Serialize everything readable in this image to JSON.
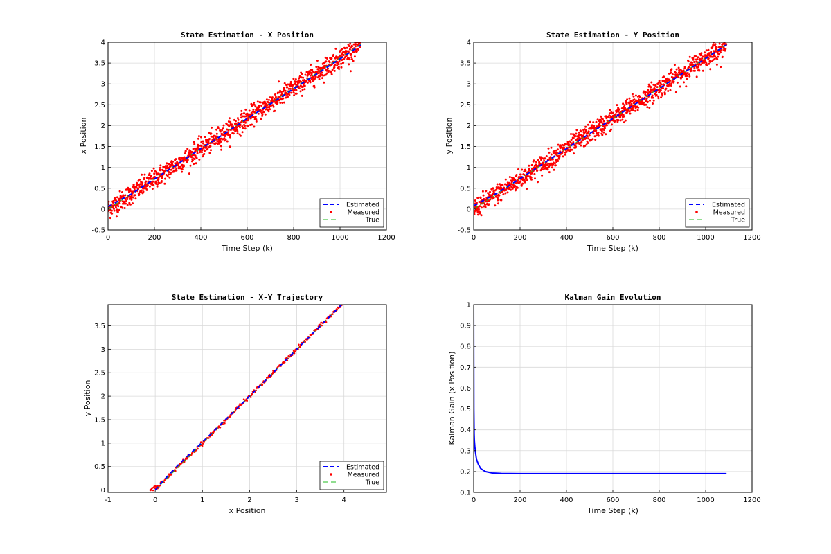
{
  "colors": {
    "estimated": "#0000ff",
    "measured": "#ff0000",
    "true": "#22bb22",
    "grid": "#d9d9d9"
  },
  "chart_data": [
    {
      "id": "x",
      "type": "line",
      "title": "State Estimation - X Position",
      "xlabel": "Time Step (k)",
      "ylabel": "x Position",
      "xlim": [
        0,
        1200
      ],
      "ylim": [
        -0.5,
        4
      ],
      "xticks": [
        0,
        200,
        400,
        600,
        800,
        1000,
        1200
      ],
      "yticks": [
        -0.5,
        0,
        0.5,
        1,
        1.5,
        2,
        2.5,
        3,
        3.5,
        4
      ],
      "grid": true,
      "legend_position": "bottom-right",
      "series": [
        {
          "name": "Estimated",
          "style": "dashed",
          "color": "#0000ff",
          "x": [
            0,
            100,
            200,
            300,
            400,
            500,
            600,
            700,
            800,
            900,
            1000,
            1090
          ],
          "y": [
            0.06,
            0.36,
            0.72,
            1.08,
            1.45,
            1.8,
            2.17,
            2.52,
            2.88,
            3.24,
            3.6,
            3.93
          ]
        },
        {
          "name": "Measured",
          "style": "markers",
          "color": "#ff0000",
          "x": [
            0,
            1090
          ],
          "y": [
            0.0,
            3.95
          ],
          "noise_sd": 0.12,
          "count": 1090
        },
        {
          "name": "True",
          "style": "dashed",
          "color": "#22bb22",
          "x": [
            0,
            1090
          ],
          "y": [
            0.0,
            3.95
          ]
        }
      ]
    },
    {
      "id": "y",
      "type": "line",
      "title": "State Estimation - Y Position",
      "xlabel": "Time Step (k)",
      "ylabel": "y Position",
      "xlim": [
        0,
        1200
      ],
      "ylim": [
        -0.5,
        4
      ],
      "xticks": [
        0,
        200,
        400,
        600,
        800,
        1000,
        1200
      ],
      "yticks": [
        -0.5,
        0,
        0.5,
        1,
        1.5,
        2,
        2.5,
        3,
        3.5,
        4
      ],
      "grid": true,
      "legend_position": "bottom-right",
      "series": [
        {
          "name": "Estimated",
          "style": "dashed",
          "color": "#0000ff",
          "x": [
            0,
            100,
            200,
            300,
            400,
            500,
            600,
            700,
            800,
            900,
            1000,
            1090
          ],
          "y": [
            0.08,
            0.38,
            0.73,
            1.09,
            1.45,
            1.81,
            2.17,
            2.53,
            2.89,
            3.25,
            3.61,
            3.94
          ]
        },
        {
          "name": "Measured",
          "style": "markers",
          "color": "#ff0000",
          "x": [
            0,
            1090
          ],
          "y": [
            0.0,
            3.95
          ],
          "noise_sd": 0.12,
          "count": 1090
        },
        {
          "name": "True",
          "style": "dashed",
          "color": "#22bb22",
          "x": [
            0,
            1090
          ],
          "y": [
            0.0,
            3.95
          ]
        }
      ]
    },
    {
      "id": "xy",
      "type": "line",
      "title": "State Estimation - X-Y Trajectory",
      "xlabel": "x Position",
      "ylabel": "y Position",
      "xlim": [
        -1,
        4.9
      ],
      "ylim": [
        -0.05,
        3.95
      ],
      "xticks": [
        -1,
        0,
        1,
        2,
        3,
        4
      ],
      "yticks": [
        0,
        0.5,
        1,
        1.5,
        2,
        2.5,
        3,
        3.5
      ],
      "grid": true,
      "legend_position": "bottom-right",
      "series": [
        {
          "name": "Estimated",
          "style": "dashed",
          "color": "#0000ff",
          "x": [
            0.0,
            0.1,
            0.5,
            1.0,
            2.0,
            3.0,
            3.95
          ],
          "y": [
            0.0,
            0.12,
            0.55,
            1.02,
            2.0,
            3.0,
            3.95
          ]
        },
        {
          "name": "Measured",
          "style": "markers",
          "color": "#ff0000",
          "x": [
            -0.1,
            0.05,
            0.15,
            0.3,
            0.6,
            1.0,
            1.5,
            2.0,
            2.5,
            3.0,
            3.5,
            3.95
          ],
          "y": [
            0.0,
            0.08,
            0.18,
            0.3,
            0.62,
            1.0,
            1.5,
            2.0,
            2.5,
            3.0,
            3.5,
            3.95
          ]
        },
        {
          "name": "True",
          "style": "dashed",
          "color": "#22bb22",
          "x": [
            0,
            3.95
          ],
          "y": [
            0,
            3.95
          ]
        }
      ]
    },
    {
      "id": "k",
      "type": "line",
      "title": "Kalman Gain Evolution",
      "xlabel": "Time Step (k)",
      "ylabel": "Kalman Gain (x Position)",
      "xlim": [
        0,
        1200
      ],
      "ylim": [
        0.1,
        1
      ],
      "xticks": [
        0,
        200,
        400,
        600,
        800,
        1000,
        1200
      ],
      "yticks": [
        0.1,
        0.2,
        0.3,
        0.4,
        0.5,
        0.6,
        0.7,
        0.8,
        0.9,
        1
      ],
      "grid": true,
      "series": [
        {
          "style": "solid",
          "color": "#0000ff",
          "x": [
            0,
            1,
            2,
            3,
            5,
            8,
            12,
            20,
            30,
            50,
            80,
            120,
            200,
            400,
            700,
            1090
          ],
          "y": [
            1.0,
            0.5,
            0.38,
            0.35,
            0.32,
            0.29,
            0.26,
            0.235,
            0.215,
            0.2,
            0.193,
            0.191,
            0.19,
            0.19,
            0.19,
            0.19
          ]
        }
      ]
    }
  ]
}
